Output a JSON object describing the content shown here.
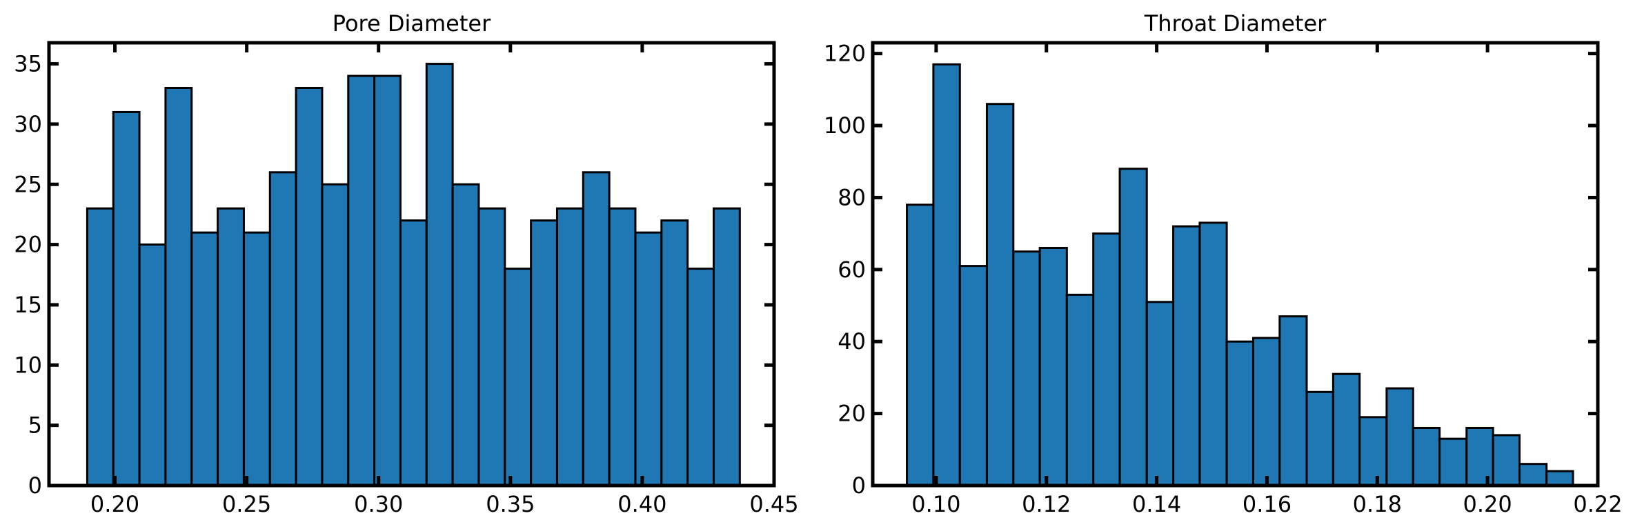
{
  "chart_data": [
    {
      "type": "bar",
      "title": "Pore Diameter",
      "xlabel": "",
      "ylabel": "",
      "xlim": [
        0.175,
        0.45
      ],
      "ylim": [
        0,
        36.75
      ],
      "xticks": [
        0.2,
        0.25,
        0.3,
        0.35,
        0.4,
        0.45
      ],
      "xtick_labels": [
        "0.20",
        "0.25",
        "0.30",
        "0.35",
        "0.40",
        "0.45"
      ],
      "yticks": [
        0,
        5,
        10,
        15,
        20,
        25,
        30,
        35
      ],
      "ytick_labels": [
        "0",
        "5",
        "10",
        "15",
        "20",
        "25",
        "30",
        "35"
      ],
      "bin_edges": [
        0.1895,
        0.1994,
        0.2093,
        0.2192,
        0.2291,
        0.239,
        0.2489,
        0.2588,
        0.2687,
        0.2786,
        0.2885,
        0.2984,
        0.3083,
        0.3182,
        0.3281,
        0.338,
        0.3479,
        0.3578,
        0.3677,
        0.3776,
        0.3875,
        0.3974,
        0.4073,
        0.4172,
        0.4271,
        0.437
      ],
      "values": [
        23,
        31,
        20,
        33,
        21,
        23,
        21,
        26,
        33,
        25,
        34,
        34,
        22,
        35,
        25,
        23,
        18,
        22,
        23,
        26,
        23,
        21,
        22,
        18,
        23
      ],
      "grid": false,
      "bar_color": "#1f77b4",
      "edge_color": "#000000"
    },
    {
      "type": "bar",
      "title": "Throat Diameter",
      "xlabel": "",
      "ylabel": "",
      "xlim": [
        0.0885,
        0.22
      ],
      "ylim": [
        0,
        123
      ],
      "xticks": [
        0.1,
        0.12,
        0.14,
        0.16,
        0.18,
        0.2,
        0.22
      ],
      "xtick_labels": [
        "0.10",
        "0.12",
        "0.14",
        "0.16",
        "0.18",
        "0.20",
        "0.22"
      ],
      "yticks": [
        0,
        20,
        40,
        60,
        80,
        100,
        120
      ],
      "ytick_labels": [
        "0",
        "20",
        "40",
        "60",
        "80",
        "100",
        "120"
      ],
      "bin_edges": [
        0.0947,
        0.0995,
        0.1043,
        0.1092,
        0.114,
        0.1188,
        0.1237,
        0.1285,
        0.1333,
        0.1382,
        0.143,
        0.1478,
        0.1527,
        0.1575,
        0.1623,
        0.1672,
        0.172,
        0.1768,
        0.1817,
        0.1865,
        0.1913,
        0.1962,
        0.201,
        0.2058,
        0.2107,
        0.2155
      ],
      "values": [
        78,
        117,
        61,
        106,
        65,
        66,
        53,
        70,
        88,
        51,
        72,
        73,
        40,
        41,
        47,
        26,
        31,
        19,
        27,
        16,
        13,
        16,
        14,
        6,
        4
      ],
      "grid": false,
      "bar_color": "#1f77b4",
      "edge_color": "#000000"
    }
  ]
}
